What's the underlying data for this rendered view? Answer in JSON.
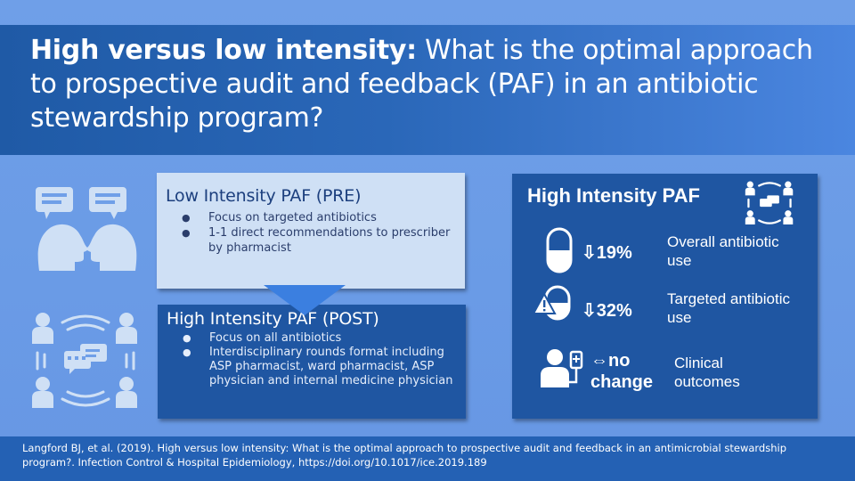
{
  "title": {
    "bold": "High versus low intensity:",
    "rest": " What is the optimal approach to prospective audit and feedback (PAF) in an antibiotic stewardship program?"
  },
  "low_box": {
    "title": "Low Intensity PAF (PRE)",
    "bullets": [
      "Focus on targeted antibiotics",
      "1-1 direct recommendations to prescriber by pharmacist"
    ]
  },
  "high_box": {
    "title": "High Intensity PAF (POST)",
    "bullets": [
      "Focus on all antibiotics",
      "Interdisciplinary rounds format including ASP pharmacist, ward pharmacist, ASP physician and internal medicine physician"
    ]
  },
  "right_box": {
    "title": "High Intensity PAF",
    "stats": [
      {
        "value": "⇩19%",
        "label": "Overall antibiotic use"
      },
      {
        "value": "⇩32%",
        "label": "Targeted antibiotic use"
      },
      {
        "value": "⇔no change",
        "label": "Clinical outcomes"
      }
    ]
  },
  "citation": "Langford BJ, et al. (2019). High versus low intensity: What is the optimal approach to prospective audit and feedback in an antimicrobial stewardship program?. Infection Control & Hospital Epidemiology, https://doi.org/10.1017/ice.2019.189",
  "icons": [
    "speech-heads-icon",
    "team-discussion-icon",
    "capsule-icon",
    "warning-capsule-icon",
    "patient-iv-icon",
    "team-discussion-small-icon",
    "down-arrow-icon"
  ],
  "colors": {
    "background": "#6f9fe8",
    "title_band": "#2a67b8",
    "dark_box": "#1f56a2",
    "light_box": "#cfe0f5",
    "citation_band": "#2461b4"
  }
}
